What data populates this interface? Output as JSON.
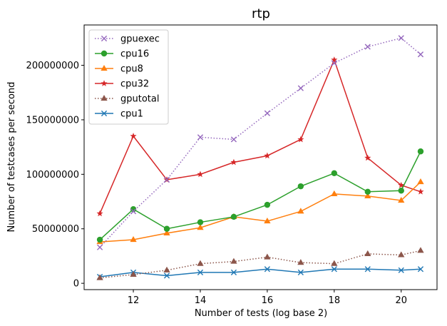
{
  "chart_data": {
    "type": "line",
    "title": "rtp",
    "xlabel": "Number of tests (log base 2)",
    "ylabel": "Number of testcases per second",
    "xlim": [
      10.53,
      21.07
    ],
    "ylim": [
      -5800000,
      237000000
    ],
    "x_ticks": [
      12,
      14,
      16,
      18,
      20
    ],
    "y_ticks": [
      0,
      50000000,
      100000000,
      150000000,
      200000000
    ],
    "y_tick_labels": [
      "0",
      "50000000",
      "100000000",
      "150000000",
      "200000000"
    ],
    "legend_position": "upper-left",
    "grid": false,
    "x": [
      11,
      12,
      13,
      14,
      15,
      16,
      17,
      18,
      19,
      20,
      20.58
    ],
    "series": [
      {
        "name": "gpuexec",
        "color": "#9467bd",
        "style": "dotted",
        "marker": "x",
        "values": [
          33000000,
          66000000,
          95000000,
          134000000,
          132000000,
          156000000,
          179000000,
          202000000,
          217000000,
          225000000,
          210000000
        ]
      },
      {
        "name": "cpu16",
        "color": "#2ca02c",
        "style": "solid",
        "marker": "circle",
        "values": [
          40000000,
          68000000,
          50000000,
          56000000,
          61000000,
          72000000,
          89000000,
          101000000,
          84000000,
          85000000,
          121000000
        ]
      },
      {
        "name": "cpu8",
        "color": "#ff7f0e",
        "style": "solid",
        "marker": "triangle",
        "values": [
          38000000,
          40000000,
          46000000,
          51000000,
          61000000,
          57000000,
          66000000,
          82000000,
          80000000,
          76000000,
          93000000
        ]
      },
      {
        "name": "cpu32",
        "color": "#d62728",
        "style": "solid",
        "marker": "star",
        "values": [
          64000000,
          135000000,
          95000000,
          100000000,
          111000000,
          117000000,
          132000000,
          205000000,
          115000000,
          90000000,
          84000000
        ]
      },
      {
        "name": "gputotal",
        "color": "#8c564b",
        "style": "dotted",
        "marker": "triangle",
        "values": [
          5000000,
          8000000,
          12000000,
          18000000,
          20000000,
          24000000,
          19000000,
          18000000,
          27000000,
          26000000,
          30000000
        ]
      },
      {
        "name": "cpu1",
        "color": "#1f77b4",
        "style": "solid",
        "marker": "x",
        "values": [
          6000000,
          10000000,
          7000000,
          10000000,
          10000000,
          13000000,
          10000000,
          13000000,
          13000000,
          12000000,
          13000000
        ]
      }
    ]
  }
}
